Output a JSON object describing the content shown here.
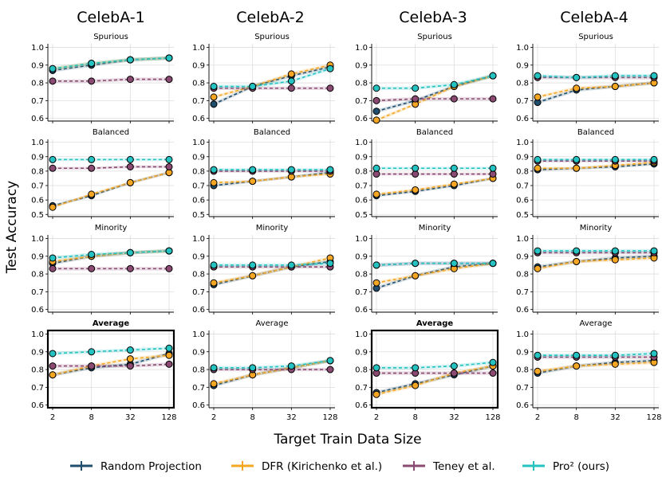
{
  "figure": {
    "column_titles": [
      "CelebA-1",
      "CelebA-2",
      "CelebA-3",
      "CelebA-4"
    ],
    "row_titles": [
      "Spurious",
      "Balanced",
      "Minority",
      "Average"
    ],
    "ylabel": "Test Accuracy",
    "xlabel": "Target Train Data Size"
  },
  "legend": [
    {
      "name": "Random Projection",
      "color": "#1f4e6e"
    },
    {
      "name": "DFR (Kirichenko et al.)",
      "color": "#f5a623"
    },
    {
      "name": "Teney et al.",
      "color": "#8b4a72"
    },
    {
      "name": "Pro² (ours)",
      "color": "#25c2c2"
    }
  ],
  "series_styles": [
    {
      "name": "Random Projection",
      "color": "#1f4e6e",
      "dash": "4,3"
    },
    {
      "name": "DFR (Kirichenko et al.)",
      "color": "#f5a623",
      "dash": "4,3"
    },
    {
      "name": "Teney et al.",
      "color": "#8b4a72",
      "dash": "4,3"
    },
    {
      "name": "Pro² (ours)",
      "color": "#25c2c2",
      "dash": "4,3"
    }
  ],
  "chart_data": [
    {
      "type": "line",
      "dataset": "CelebA-1",
      "title": "Spurious",
      "categories": [
        "2",
        "8",
        "32",
        "128"
      ],
      "yticks": [
        "0.6",
        "0.7",
        "0.8",
        "0.9",
        "1.0"
      ],
      "ylim": [
        0.585,
        1.02
      ],
      "highlight": false,
      "series": [
        {
          "name": "Random Projection",
          "values": [
            0.87,
            0.9,
            0.93,
            0.94
          ]
        },
        {
          "name": "DFR (Kirichenko et al.)",
          "values": [
            0.88,
            0.91,
            0.93,
            0.94
          ]
        },
        {
          "name": "Teney et al.",
          "values": [
            0.81,
            0.81,
            0.82,
            0.82
          ]
        },
        {
          "name": "Pro² (ours)",
          "values": [
            0.88,
            0.91,
            0.93,
            0.94
          ]
        }
      ]
    },
    {
      "type": "line",
      "dataset": "CelebA-2",
      "title": "Spurious",
      "categories": [
        "2",
        "8",
        "32",
        "128"
      ],
      "yticks": [
        "0.6",
        "0.7",
        "0.8",
        "0.9",
        "1.0"
      ],
      "ylim": [
        0.585,
        1.02
      ],
      "highlight": false,
      "series": [
        {
          "name": "Random Projection",
          "values": [
            0.68,
            0.78,
            0.84,
            0.89
          ]
        },
        {
          "name": "DFR (Kirichenko et al.)",
          "values": [
            0.72,
            0.78,
            0.85,
            0.9
          ]
        },
        {
          "name": "Teney et al.",
          "values": [
            0.77,
            0.77,
            0.77,
            0.77
          ]
        },
        {
          "name": "Pro² (ours)",
          "values": [
            0.78,
            0.78,
            0.81,
            0.88
          ]
        }
      ]
    },
    {
      "type": "line",
      "dataset": "CelebA-3",
      "title": "Spurious",
      "categories": [
        "2",
        "8",
        "32",
        "128"
      ],
      "yticks": [
        "0.6",
        "0.7",
        "0.8",
        "0.9",
        "1.0"
      ],
      "ylim": [
        0.585,
        1.02
      ],
      "highlight": false,
      "series": [
        {
          "name": "Random Projection",
          "values": [
            0.64,
            0.7,
            0.78,
            0.84
          ]
        },
        {
          "name": "DFR (Kirichenko et al.)",
          "values": [
            0.59,
            0.68,
            0.78,
            0.84
          ]
        },
        {
          "name": "Teney et al.",
          "values": [
            0.7,
            0.71,
            0.71,
            0.71
          ]
        },
        {
          "name": "Pro² (ours)",
          "values": [
            0.77,
            0.77,
            0.79,
            0.84
          ]
        }
      ]
    },
    {
      "type": "line",
      "dataset": "CelebA-4",
      "title": "Spurious",
      "categories": [
        "2",
        "8",
        "32",
        "128"
      ],
      "yticks": [
        "0.6",
        "0.7",
        "0.8",
        "0.9",
        "1.0"
      ],
      "ylim": [
        0.585,
        1.02
      ],
      "highlight": false,
      "series": [
        {
          "name": "Random Projection",
          "values": [
            0.69,
            0.76,
            0.78,
            0.8
          ]
        },
        {
          "name": "DFR (Kirichenko et al.)",
          "values": [
            0.72,
            0.77,
            0.78,
            0.8
          ]
        },
        {
          "name": "Teney et al.",
          "values": [
            0.83,
            0.83,
            0.83,
            0.83
          ]
        },
        {
          "name": "Pro² (ours)",
          "values": [
            0.84,
            0.83,
            0.84,
            0.84
          ]
        }
      ]
    },
    {
      "type": "line",
      "dataset": "CelebA-1",
      "title": "Balanced",
      "categories": [
        "2",
        "8",
        "32",
        "128"
      ],
      "yticks": [
        "0.5",
        "0.6",
        "0.7",
        "0.8",
        "0.9",
        "1.0"
      ],
      "ylim": [
        0.485,
        1.02
      ],
      "highlight": false,
      "series": [
        {
          "name": "Random Projection",
          "values": [
            0.56,
            0.63,
            0.72,
            0.79
          ]
        },
        {
          "name": "DFR (Kirichenko et al.)",
          "values": [
            0.55,
            0.64,
            0.72,
            0.79
          ]
        },
        {
          "name": "Teney et al.",
          "values": [
            0.82,
            0.82,
            0.83,
            0.83
          ]
        },
        {
          "name": "Pro² (ours)",
          "values": [
            0.88,
            0.88,
            0.88,
            0.88
          ]
        }
      ]
    },
    {
      "type": "line",
      "dataset": "CelebA-2",
      "title": "Balanced",
      "categories": [
        "2",
        "8",
        "32",
        "128"
      ],
      "yticks": [
        "0.5",
        "0.6",
        "0.7",
        "0.8",
        "0.9",
        "1.0"
      ],
      "ylim": [
        0.485,
        1.02
      ],
      "highlight": false,
      "series": [
        {
          "name": "Random Projection",
          "values": [
            0.7,
            0.73,
            0.76,
            0.79
          ]
        },
        {
          "name": "DFR (Kirichenko et al.)",
          "values": [
            0.72,
            0.73,
            0.76,
            0.78
          ]
        },
        {
          "name": "Teney et al.",
          "values": [
            0.8,
            0.8,
            0.8,
            0.8
          ]
        },
        {
          "name": "Pro² (ours)",
          "values": [
            0.81,
            0.81,
            0.81,
            0.81
          ]
        }
      ]
    },
    {
      "type": "line",
      "dataset": "CelebA-3",
      "title": "Balanced",
      "categories": [
        "2",
        "8",
        "32",
        "128"
      ],
      "yticks": [
        "0.5",
        "0.6",
        "0.7",
        "0.8",
        "0.9",
        "1.0"
      ],
      "ylim": [
        0.485,
        1.02
      ],
      "highlight": false,
      "series": [
        {
          "name": "Random Projection",
          "values": [
            0.63,
            0.66,
            0.7,
            0.75
          ]
        },
        {
          "name": "DFR (Kirichenko et al.)",
          "values": [
            0.64,
            0.67,
            0.71,
            0.75
          ]
        },
        {
          "name": "Teney et al.",
          "values": [
            0.78,
            0.78,
            0.78,
            0.78
          ]
        },
        {
          "name": "Pro² (ours)",
          "values": [
            0.82,
            0.82,
            0.82,
            0.82
          ]
        }
      ]
    },
    {
      "type": "line",
      "dataset": "CelebA-4",
      "title": "Balanced",
      "categories": [
        "2",
        "8",
        "32",
        "128"
      ],
      "yticks": [
        "0.5",
        "0.6",
        "0.7",
        "0.8",
        "0.9",
        "1.0"
      ],
      "ylim": [
        0.485,
        1.02
      ],
      "highlight": false,
      "series": [
        {
          "name": "Random Projection",
          "values": [
            0.81,
            0.82,
            0.83,
            0.85
          ]
        },
        {
          "name": "DFR (Kirichenko et al.)",
          "values": [
            0.82,
            0.82,
            0.84,
            0.86
          ]
        },
        {
          "name": "Teney et al.",
          "values": [
            0.87,
            0.87,
            0.87,
            0.87
          ]
        },
        {
          "name": "Pro² (ours)",
          "values": [
            0.88,
            0.88,
            0.88,
            0.88
          ]
        }
      ]
    },
    {
      "type": "line",
      "dataset": "CelebA-1",
      "title": "Minority",
      "categories": [
        "2",
        "8",
        "32",
        "128"
      ],
      "yticks": [
        "0.6",
        "0.7",
        "0.8",
        "0.9",
        "1.0"
      ],
      "ylim": [
        0.585,
        1.02
      ],
      "highlight": false,
      "series": [
        {
          "name": "Random Projection",
          "values": [
            0.86,
            0.9,
            0.92,
            0.93
          ]
        },
        {
          "name": "DFR (Kirichenko et al.)",
          "values": [
            0.87,
            0.9,
            0.92,
            0.93
          ]
        },
        {
          "name": "Teney et al.",
          "values": [
            0.83,
            0.83,
            0.83,
            0.83
          ]
        },
        {
          "name": "Pro² (ours)",
          "values": [
            0.89,
            0.91,
            0.92,
            0.93
          ]
        }
      ]
    },
    {
      "type": "line",
      "dataset": "CelebA-2",
      "title": "Minority",
      "categories": [
        "2",
        "8",
        "32",
        "128"
      ],
      "yticks": [
        "0.6",
        "0.7",
        "0.8",
        "0.9",
        "1.0"
      ],
      "ylim": [
        0.585,
        1.02
      ],
      "highlight": false,
      "series": [
        {
          "name": "Random Projection",
          "values": [
            0.74,
            0.79,
            0.84,
            0.87
          ]
        },
        {
          "name": "DFR (Kirichenko et al.)",
          "values": [
            0.75,
            0.79,
            0.84,
            0.89
          ]
        },
        {
          "name": "Teney et al.",
          "values": [
            0.84,
            0.84,
            0.84,
            0.84
          ]
        },
        {
          "name": "Pro² (ours)",
          "values": [
            0.85,
            0.85,
            0.85,
            0.86
          ]
        }
      ]
    },
    {
      "type": "line",
      "dataset": "CelebA-3",
      "title": "Minority",
      "categories": [
        "2",
        "8",
        "32",
        "128"
      ],
      "yticks": [
        "0.6",
        "0.7",
        "0.8",
        "0.9",
        "1.0"
      ],
      "ylim": [
        0.585,
        1.02
      ],
      "highlight": false,
      "series": [
        {
          "name": "Random Projection",
          "values": [
            0.72,
            0.79,
            0.84,
            0.86
          ]
        },
        {
          "name": "DFR (Kirichenko et al.)",
          "values": [
            0.75,
            0.79,
            0.83,
            0.86
          ]
        },
        {
          "name": "Teney et al.",
          "values": [
            0.85,
            0.86,
            0.86,
            0.86
          ]
        },
        {
          "name": "Pro² (ours)",
          "values": [
            0.85,
            0.86,
            0.86,
            0.86
          ]
        }
      ]
    },
    {
      "type": "line",
      "dataset": "CelebA-4",
      "title": "Minority",
      "categories": [
        "2",
        "8",
        "32",
        "128"
      ],
      "yticks": [
        "0.6",
        "0.7",
        "0.8",
        "0.9",
        "1.0"
      ],
      "ylim": [
        0.585,
        1.02
      ],
      "highlight": false,
      "series": [
        {
          "name": "Random Projection",
          "values": [
            0.84,
            0.87,
            0.89,
            0.9
          ]
        },
        {
          "name": "DFR (Kirichenko et al.)",
          "values": [
            0.83,
            0.87,
            0.88,
            0.89
          ]
        },
        {
          "name": "Teney et al.",
          "values": [
            0.92,
            0.92,
            0.92,
            0.92
          ]
        },
        {
          "name": "Pro² (ours)",
          "values": [
            0.93,
            0.93,
            0.93,
            0.93
          ]
        }
      ]
    },
    {
      "type": "line",
      "dataset": "CelebA-1",
      "title": "Average",
      "categories": [
        "2",
        "8",
        "32",
        "128"
      ],
      "yticks": [
        "0.6",
        "0.7",
        "0.8",
        "0.9",
        "1.0"
      ],
      "ylim": [
        0.585,
        1.02
      ],
      "highlight": true,
      "series": [
        {
          "name": "Random Projection",
          "values": [
            0.77,
            0.81,
            0.83,
            0.89
          ]
        },
        {
          "name": "DFR (Kirichenko et al.)",
          "values": [
            0.77,
            0.82,
            0.86,
            0.88
          ]
        },
        {
          "name": "Teney et al.",
          "values": [
            0.82,
            0.82,
            0.82,
            0.83
          ]
        },
        {
          "name": "Pro² (ours)",
          "values": [
            0.89,
            0.9,
            0.91,
            0.92
          ]
        }
      ]
    },
    {
      "type": "line",
      "dataset": "CelebA-2",
      "title": "Average",
      "categories": [
        "2",
        "8",
        "32",
        "128"
      ],
      "yticks": [
        "0.6",
        "0.7",
        "0.8",
        "0.9",
        "1.0"
      ],
      "ylim": [
        0.585,
        1.02
      ],
      "highlight": false,
      "series": [
        {
          "name": "Random Projection",
          "values": [
            0.71,
            0.77,
            0.81,
            0.85
          ]
        },
        {
          "name": "DFR (Kirichenko et al.)",
          "values": [
            0.72,
            0.77,
            0.81,
            0.85
          ]
        },
        {
          "name": "Teney et al.",
          "values": [
            0.8,
            0.8,
            0.8,
            0.8
          ]
        },
        {
          "name": "Pro² (ours)",
          "values": [
            0.81,
            0.81,
            0.82,
            0.85
          ]
        }
      ]
    },
    {
      "type": "line",
      "dataset": "CelebA-3",
      "title": "Average",
      "categories": [
        "2",
        "8",
        "32",
        "128"
      ],
      "yticks": [
        "0.6",
        "0.7",
        "0.8",
        "0.9",
        "1.0"
      ],
      "ylim": [
        0.585,
        1.02
      ],
      "highlight": true,
      "series": [
        {
          "name": "Random Projection",
          "values": [
            0.67,
            0.72,
            0.77,
            0.82
          ]
        },
        {
          "name": "DFR (Kirichenko et al.)",
          "values": [
            0.66,
            0.71,
            0.78,
            0.82
          ]
        },
        {
          "name": "Teney et al.",
          "values": [
            0.78,
            0.78,
            0.78,
            0.78
          ]
        },
        {
          "name": "Pro² (ours)",
          "values": [
            0.81,
            0.81,
            0.82,
            0.84
          ]
        }
      ]
    },
    {
      "type": "line",
      "dataset": "CelebA-4",
      "title": "Average",
      "categories": [
        "2",
        "8",
        "32",
        "128"
      ],
      "yticks": [
        "0.6",
        "0.7",
        "0.8",
        "0.9",
        "1.0"
      ],
      "ylim": [
        0.585,
        1.02
      ],
      "highlight": false,
      "series": [
        {
          "name": "Random Projection",
          "values": [
            0.78,
            0.82,
            0.84,
            0.85
          ]
        },
        {
          "name": "DFR (Kirichenko et al.)",
          "values": [
            0.79,
            0.82,
            0.83,
            0.84
          ]
        },
        {
          "name": "Teney et al.",
          "values": [
            0.87,
            0.87,
            0.87,
            0.87
          ]
        },
        {
          "name": "Pro² (ours)",
          "values": [
            0.88,
            0.88,
            0.88,
            0.89
          ]
        }
      ]
    }
  ]
}
